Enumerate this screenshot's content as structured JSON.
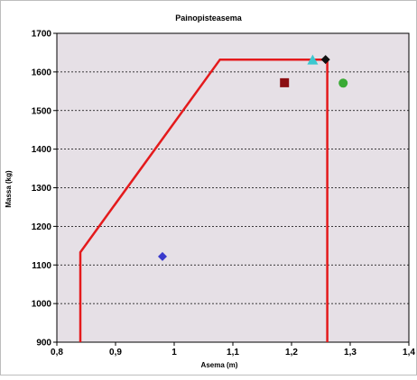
{
  "chart_data": {
    "type": "scatter",
    "title": "Painopisteasema",
    "xlabel": "Asema (m)",
    "ylabel": "Massa (kg)",
    "xlim": [
      0.8,
      1.4
    ],
    "ylim": [
      900,
      1700
    ],
    "x_ticks": [
      "0,8",
      "0,9",
      "1",
      "1,1",
      "1,2",
      "1,3",
      "1,4"
    ],
    "x_tick_values": [
      0.8,
      0.9,
      1.0,
      1.1,
      1.2,
      1.3,
      1.4
    ],
    "y_ticks": [
      "900",
      "1000",
      "1100",
      "1200",
      "1300",
      "1400",
      "1500",
      "1600",
      "1700"
    ],
    "y_tick_values": [
      900,
      1000,
      1100,
      1200,
      1300,
      1400,
      1500,
      1600,
      1700
    ],
    "grid": "horizontal-dashed",
    "background": "#e6e0e6",
    "envelope": {
      "color": "#e41a1c",
      "points": [
        [
          0.84,
          900
        ],
        [
          0.84,
          1133
        ],
        [
          1.078,
          1632
        ],
        [
          1.261,
          1632
        ],
        [
          1.261,
          900
        ]
      ]
    },
    "markers": [
      {
        "shape": "diamond",
        "color": "#3a3acc",
        "x": 0.98,
        "y": 1122
      },
      {
        "shape": "square",
        "color": "#8b0e12",
        "x": 1.188,
        "y": 1572
      },
      {
        "shape": "triangle",
        "color": "#3cc8d0",
        "x": 1.236,
        "y": 1631
      },
      {
        "shape": "diamond",
        "color": "#111111",
        "x": 1.258,
        "y": 1632
      },
      {
        "shape": "circle",
        "color": "#3aaa35",
        "x": 1.288,
        "y": 1571
      }
    ]
  }
}
